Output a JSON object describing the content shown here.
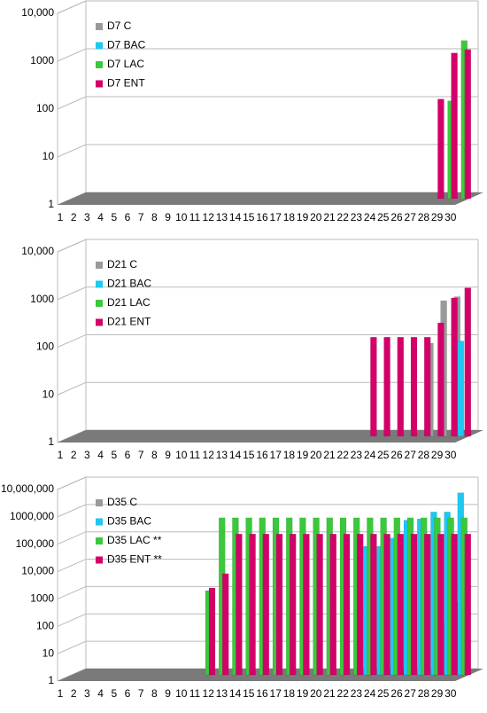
{
  "chart_data": [
    {
      "type": "bar",
      "log_scale": true,
      "grid": true,
      "legend": "upper left",
      "categories": [
        "1",
        "2",
        "3",
        "4",
        "5",
        "6",
        "7",
        "8",
        "9",
        "10",
        "11",
        "12",
        "13",
        "14",
        "15",
        "16",
        "17",
        "18",
        "19",
        "20",
        "21",
        "22",
        "23",
        "24",
        "25",
        "26",
        "27",
        "28",
        "29",
        "30"
      ],
      "ylim": [
        1,
        10000
      ],
      "yticks": [
        1,
        10,
        100,
        1000,
        {
          "value": 10000,
          "label": "10,000"
        }
      ],
      "series": [
        {
          "name": "D7 C",
          "color": "#9a9a9a",
          "values": [
            null,
            null,
            null,
            null,
            null,
            null,
            null,
            null,
            null,
            null,
            null,
            null,
            null,
            null,
            null,
            null,
            null,
            null,
            null,
            null,
            null,
            null,
            null,
            null,
            null,
            null,
            null,
            null,
            null,
            null
          ]
        },
        {
          "name": "D7 BAC",
          "color": "#1ec8f0",
          "values": [
            null,
            null,
            null,
            null,
            null,
            null,
            null,
            null,
            null,
            null,
            null,
            null,
            null,
            null,
            null,
            null,
            null,
            null,
            null,
            null,
            null,
            null,
            null,
            null,
            null,
            null,
            null,
            null,
            null,
            null
          ]
        },
        {
          "name": "D7 LAC",
          "color": "#3cc83c",
          "values": [
            null,
            null,
            null,
            null,
            null,
            null,
            null,
            null,
            null,
            null,
            null,
            null,
            null,
            null,
            null,
            null,
            null,
            null,
            null,
            null,
            null,
            null,
            null,
            null,
            null,
            null,
            null,
            null,
            110,
            2000
          ]
        },
        {
          "name": "D7 ENT",
          "color": "#d4006a",
          "values": [
            null,
            null,
            null,
            null,
            null,
            null,
            null,
            null,
            null,
            null,
            null,
            null,
            null,
            null,
            null,
            null,
            null,
            null,
            null,
            null,
            null,
            null,
            null,
            null,
            null,
            null,
            null,
            120,
            1100,
            1300
          ]
        }
      ]
    },
    {
      "type": "bar",
      "log_scale": true,
      "grid": true,
      "legend": "upper left",
      "categories": [
        "1",
        "2",
        "3",
        "4",
        "5",
        "6",
        "7",
        "8",
        "9",
        "10",
        "11",
        "12",
        "13",
        "14",
        "15",
        "16",
        "17",
        "18",
        "19",
        "20",
        "21",
        "22",
        "23",
        "24",
        "25",
        "26",
        "27",
        "28",
        "29",
        "30"
      ],
      "ylim": [
        1,
        10000
      ],
      "yticks": [
        1,
        10,
        100,
        1000,
        {
          "value": 10000,
          "label": "10,000"
        }
      ],
      "series": [
        {
          "name": "D21 C",
          "color": "#9a9a9a",
          "values": [
            null,
            null,
            null,
            null,
            null,
            null,
            null,
            null,
            null,
            null,
            null,
            null,
            null,
            null,
            null,
            null,
            null,
            null,
            null,
            null,
            null,
            null,
            null,
            null,
            null,
            null,
            null,
            90,
            700,
            850
          ]
        },
        {
          "name": "D21 BAC",
          "color": "#1ec8f0",
          "values": [
            null,
            null,
            null,
            null,
            null,
            null,
            null,
            null,
            null,
            null,
            null,
            null,
            null,
            null,
            null,
            null,
            null,
            null,
            null,
            null,
            null,
            null,
            null,
            null,
            null,
            null,
            null,
            null,
            null,
            100
          ]
        },
        {
          "name": "D21 LAC",
          "color": "#3cc83c",
          "values": [
            null,
            null,
            null,
            null,
            null,
            null,
            null,
            null,
            null,
            null,
            null,
            null,
            null,
            null,
            null,
            null,
            null,
            null,
            null,
            null,
            null,
            null,
            null,
            null,
            null,
            null,
            null,
            null,
            null,
            null
          ]
        },
        {
          "name": "D21 ENT",
          "color": "#d4006a",
          "values": [
            null,
            null,
            null,
            null,
            null,
            null,
            null,
            null,
            null,
            null,
            null,
            null,
            null,
            null,
            null,
            null,
            null,
            null,
            null,
            null,
            null,
            null,
            120,
            120,
            120,
            120,
            120,
            240,
            800,
            1300
          ]
        }
      ]
    },
    {
      "type": "bar",
      "log_scale": true,
      "grid": true,
      "legend": "upper left",
      "categories": [
        "1",
        "2",
        "3",
        "4",
        "5",
        "6",
        "7",
        "8",
        "9",
        "10",
        "11",
        "12",
        "13",
        "14",
        "15",
        "16",
        "17",
        "18",
        "19",
        "20",
        "21",
        "22",
        "23",
        "24",
        "25",
        "26",
        "27",
        "28",
        "29",
        "30"
      ],
      "ylim": [
        1,
        10000000
      ],
      "yticks": [
        1,
        10,
        100,
        1000,
        {
          "value": 10000,
          "label": "10,000"
        },
        {
          "value": 100000,
          "label": "100,000"
        },
        {
          "value": 1000000,
          "label": "1000,000"
        },
        {
          "value": 10000000,
          "label": "10,000,000"
        }
      ],
      "series": [
        {
          "name": "D35 C",
          "color": "#9a9a9a",
          "values": [
            null,
            null,
            null,
            null,
            null,
            null,
            null,
            null,
            null,
            null,
            null,
            null,
            null,
            null,
            null,
            null,
            null,
            null,
            null,
            null,
            null,
            null,
            null,
            null,
            null,
            null,
            null,
            null,
            80,
            450
          ]
        },
        {
          "name": "D35 BAC",
          "color": "#1ec8f0",
          "values": [
            null,
            null,
            null,
            null,
            null,
            null,
            null,
            null,
            null,
            null,
            null,
            null,
            null,
            null,
            null,
            null,
            null,
            null,
            null,
            null,
            null,
            null,
            50000,
            50000,
            100000,
            450000,
            500000,
            900000,
            900000,
            4500000
          ]
        },
        {
          "name": "D35 LAC **",
          "color": "#3cc83c",
          "values": [
            null,
            null,
            null,
            null,
            null,
            null,
            null,
            null,
            null,
            null,
            1200,
            550000,
            550000,
            550000,
            550000,
            550000,
            550000,
            550000,
            550000,
            550000,
            550000,
            550000,
            550000,
            550000,
            550000,
            550000,
            550000,
            550000,
            550000,
            550000
          ]
        },
        {
          "name": "D35 ENT **",
          "color": "#d4006a",
          "values": [
            null,
            null,
            null,
            null,
            null,
            null,
            null,
            null,
            null,
            null,
            1500,
            5000,
            140000,
            140000,
            140000,
            140000,
            140000,
            140000,
            140000,
            140000,
            140000,
            140000,
            140000,
            140000,
            140000,
            140000,
            140000,
            140000,
            140000,
            140000
          ]
        }
      ]
    }
  ]
}
